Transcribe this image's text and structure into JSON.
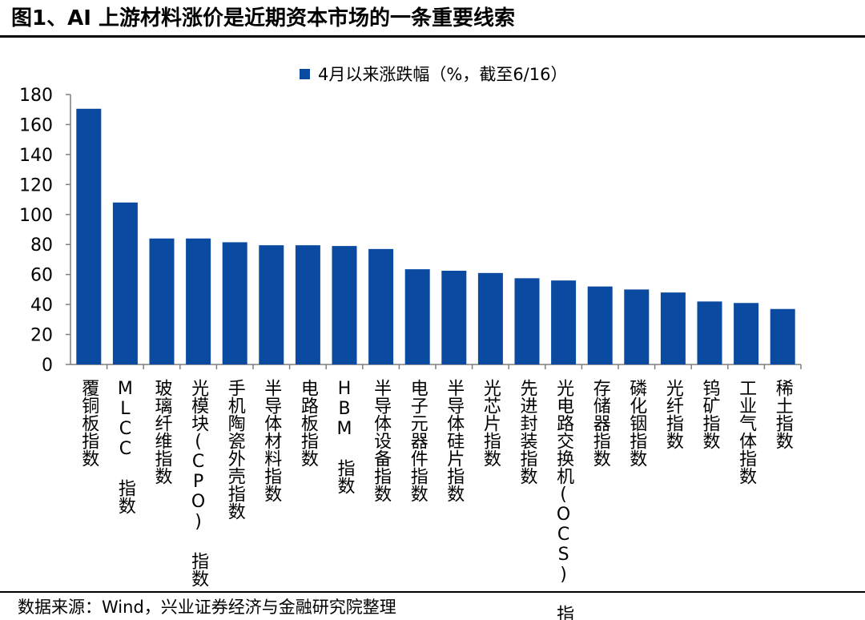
{
  "figure": {
    "title": "图1、AI 上游材料涨价是近期资本市场的一条重要线索",
    "source_prefix": "数据来源：",
    "source_text": "Wind，兴业证券经济与金融研究院整理"
  },
  "colors": {
    "bar": "#0a4aa0",
    "axis": "#7f7f7f",
    "text": "#000000"
  },
  "chart_data": {
    "type": "bar",
    "legend_position": "top-center",
    "grid": false,
    "series": [
      {
        "name": "4月以来涨跌幅（%，截至6/16）",
        "values": [
          170.5,
          108,
          84,
          84,
          81.5,
          79.5,
          79.5,
          79,
          77,
          63.5,
          62.5,
          61,
          57.5,
          56,
          52,
          50,
          48,
          42,
          41,
          37
        ]
      }
    ],
    "categories": [
      "覆铜板指数",
      "MLCC 指数",
      "玻璃纤维指数",
      "光模块(CPO) 指数",
      "手机陶瓷外壳指数",
      "半导体材料指数",
      "电路板指数",
      "HBM 指数",
      "半导体设备指数",
      "电子元器件指数",
      "半导体硅片指数",
      "光芯片指数",
      "先进封装指数",
      "光电路交换机(OCS) 指数",
      "存储器指数",
      "磷化铟指数",
      "光纤指数",
      "钨矿指数",
      "工业气体指数",
      "稀土指数"
    ],
    "ylim": [
      0,
      180
    ],
    "yticks": [
      0,
      20,
      40,
      60,
      80,
      100,
      120,
      140,
      160,
      180
    ]
  }
}
